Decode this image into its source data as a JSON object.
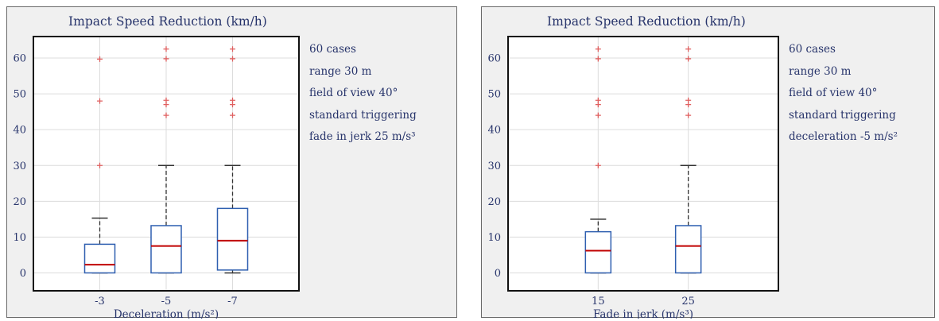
{
  "panels": [
    {
      "id": "left",
      "title": "Impact Speed Reduction (km/h)",
      "notes": [
        "60 cases",
        "range 30 m",
        "field of view 40°",
        "standard triggering",
        "fade in jerk 25 m/s³"
      ]
    },
    {
      "id": "right",
      "title": "Impact Speed Reduction (km/h)",
      "notes": [
        "60 cases",
        "range 30 m",
        "field of view 40°",
        "standard triggering",
        "deceleration -5 m/s²"
      ]
    }
  ],
  "colors": {
    "box": "#2f5fb0",
    "median": "#c00000",
    "outlier": "#e06060",
    "whisker": "#333333",
    "text": "#27346b"
  },
  "chart_data": [
    {
      "type": "box",
      "title": "Impact Speed Reduction (km/h)",
      "xlabel": "Deceleration (m/s²)",
      "ylabel": "",
      "ylim": [
        -5,
        66
      ],
      "yticks": [
        0,
        10,
        20,
        30,
        40,
        50,
        60
      ],
      "grid": true,
      "categories": [
        "-3",
        "-5",
        "-7"
      ],
      "boxes": [
        {
          "category": "-3",
          "whislo": 0,
          "q1": 0,
          "median": 2.3,
          "q3": 8,
          "whishi": 15.3,
          "outliers": [
            30,
            48,
            59.7
          ]
        },
        {
          "category": "-5",
          "whislo": 0,
          "q1": 0,
          "median": 7.5,
          "q3": 13.2,
          "whishi": 30,
          "outliers": [
            44,
            47,
            48.2,
            59.8,
            62.5
          ]
        },
        {
          "category": "-7",
          "whislo": 0,
          "q1": 0.8,
          "median": 9,
          "q3": 18,
          "whishi": 30,
          "outliers": [
            44,
            47,
            48.2,
            59.8,
            62.5
          ]
        }
      ]
    },
    {
      "type": "box",
      "title": "Impact Speed Reduction (km/h)",
      "xlabel": "Fade in jerk (m/s³)",
      "ylabel": "",
      "ylim": [
        -5,
        66
      ],
      "yticks": [
        0,
        10,
        20,
        30,
        40,
        50,
        60
      ],
      "grid": true,
      "categories": [
        "15",
        "25"
      ],
      "boxes": [
        {
          "category": "15",
          "whislo": 0,
          "q1": 0,
          "median": 6.2,
          "q3": 11.5,
          "whishi": 15,
          "outliers": [
            30,
            44,
            47,
            48.2,
            59.8,
            62.5
          ]
        },
        {
          "category": "25",
          "whislo": 0,
          "q1": 0,
          "median": 7.5,
          "q3": 13.2,
          "whishi": 30,
          "outliers": [
            44,
            47,
            48.2,
            59.8,
            62.5
          ]
        }
      ]
    }
  ]
}
